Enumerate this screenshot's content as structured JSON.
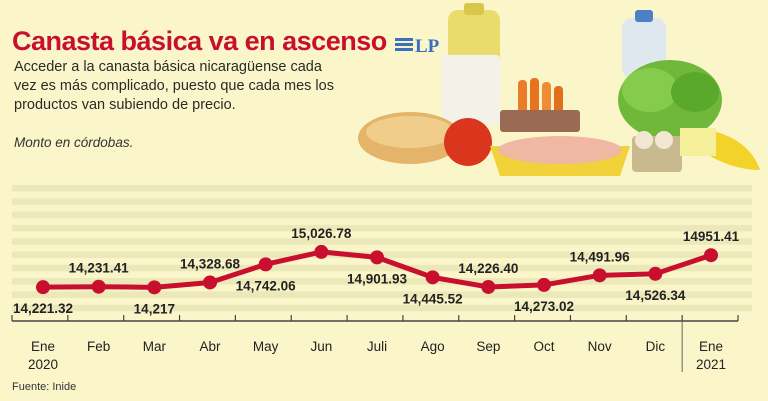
{
  "header": {
    "title": "Canasta básica va en ascenso",
    "logo_text": "LP",
    "subtitle": "Acceder a la canasta básica nicaragüense cada vez es más complicado, puesto que cada mes los productos van subiendo de precio.",
    "unit_note": "Monto en córdobas.",
    "source": "Fuente: Inide"
  },
  "colors": {
    "title": "#c8102e",
    "line": "#c8102e",
    "background": "#fbf6c9",
    "stripe": "#ebe8b9"
  },
  "chart_data": {
    "type": "line",
    "title": "Canasta básica va en ascenso",
    "xlabel": "",
    "ylabel": "Monto en córdobas.",
    "ylim": [
      13700,
      16600
    ],
    "grid": true,
    "categories": [
      "Ene 2020",
      "Feb",
      "Mar",
      "Abr",
      "May",
      "Jun",
      "Juli",
      "Ago",
      "Sep",
      "Oct",
      "Nov",
      "Dic",
      "Ene 2021"
    ],
    "tick_labels": [
      [
        "Ene",
        "2020"
      ],
      [
        "Feb"
      ],
      [
        "Mar"
      ],
      [
        "Abr"
      ],
      [
        "May"
      ],
      [
        "Jun"
      ],
      [
        "Juli"
      ],
      [
        "Ago"
      ],
      [
        "Sep"
      ],
      [
        "Oct"
      ],
      [
        "Nov"
      ],
      [
        "Dic"
      ],
      [
        "Ene",
        "2021"
      ]
    ],
    "values": [
      14221.32,
      14231.41,
      14217,
      14328.68,
      14742.06,
      15026.78,
      14901.93,
      14445.52,
      14226.4,
      14273.02,
      14491.96,
      14526.34,
      14951.41
    ],
    "data_labels": [
      "14,221.32",
      "14,231.41",
      "14,217",
      "14,328.68",
      "14,742.06",
      "15,026.78",
      "14,901.93",
      "14,445.52",
      "14,226.40",
      "14,273.02",
      "14,491.96",
      "14,526.34",
      "14951.41"
    ],
    "label_positions": [
      "below",
      "above",
      "below",
      "above",
      "below",
      "above",
      "below",
      "below",
      "above",
      "below",
      "above",
      "below",
      "above"
    ]
  }
}
